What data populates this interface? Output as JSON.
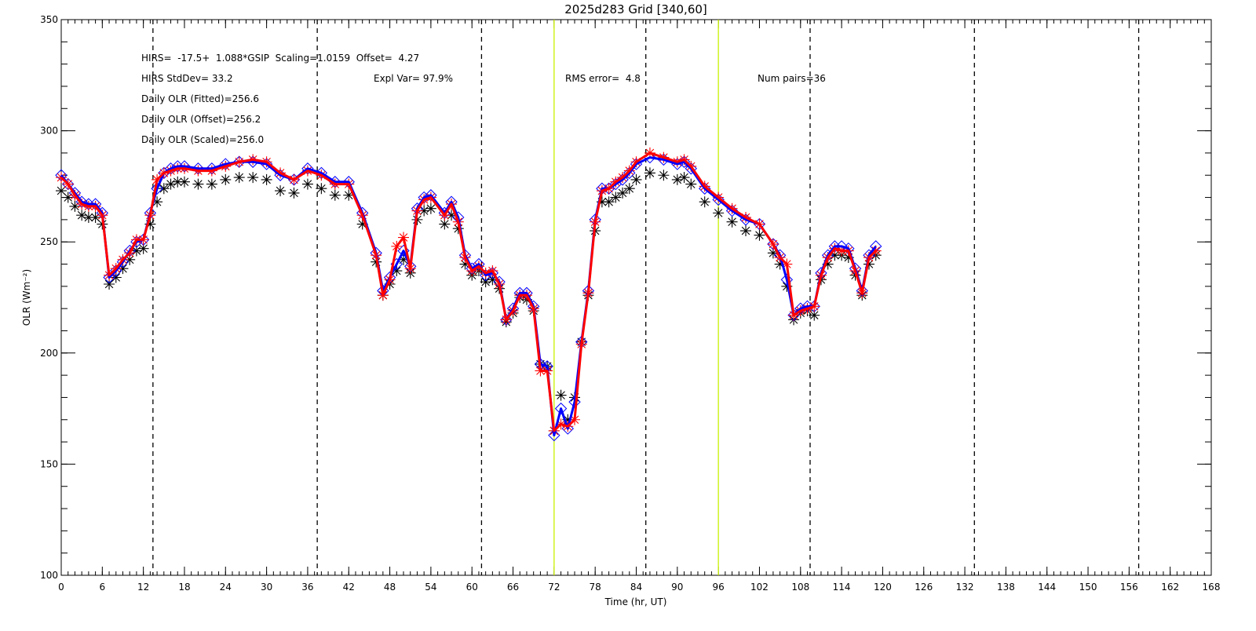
{
  "chart_data": {
    "type": "scatter",
    "title": "2025d283 Grid [340,60]",
    "x_label": "Time (hr, UT)",
    "y_label": "OLR (Wm⁻²)",
    "xlim": [
      0,
      168
    ],
    "xticks": [
      0,
      6,
      12,
      18,
      24,
      30,
      36,
      42,
      48,
      54,
      60,
      66,
      72,
      78,
      84,
      90,
      96,
      102,
      108,
      114,
      120,
      126,
      132,
      138,
      144,
      150,
      156,
      162,
      168
    ],
    "xminor_step": 1,
    "ylim": [
      100,
      350
    ],
    "yticks": [
      100,
      150,
      200,
      250,
      300,
      350
    ],
    "yminor_step": 10,
    "annotations": [
      "HIRS=  -17.5+  1.088*GSIP  Scaling=1.0159  Offset=  4.27",
      "HIRS StdDev= 33.2",
      "Expl Var= 97.9%",
      "RMS error=  4.8",
      "Num pairs=36",
      "Daily OLR (Fitted)=256.6",
      "Daily OLR (Offset)=256.2",
      "Daily OLR (Scaled)=256.0"
    ],
    "vlines": [
      {
        "x": 13.4,
        "color": "#000000",
        "dash": true
      },
      {
        "x": 37.4,
        "color": "#000000",
        "dash": true
      },
      {
        "x": 61.4,
        "color": "#000000",
        "dash": true
      },
      {
        "x": 85.4,
        "color": "#000000",
        "dash": true
      },
      {
        "x": 109.4,
        "color": "#000000",
        "dash": true
      },
      {
        "x": 133.4,
        "color": "#000000",
        "dash": true
      },
      {
        "x": 157.4,
        "color": "#000000",
        "dash": true
      },
      {
        "x": 72,
        "color": "#c8f000",
        "dash": false
      },
      {
        "x": 96,
        "color": "#c8f000",
        "dash": false
      }
    ],
    "x": [
      0,
      1,
      2,
      3,
      4,
      5,
      6,
      7,
      8,
      9,
      10,
      11,
      12,
      13,
      14,
      15,
      16,
      17,
      18,
      20,
      22,
      24,
      26,
      28,
      30,
      32,
      34,
      36,
      38,
      40,
      42,
      44,
      46,
      47,
      48,
      49,
      50,
      51,
      52,
      53,
      54,
      56,
      57,
      58,
      59,
      60,
      61,
      62,
      63,
      64,
      65,
      66,
      67,
      68,
      69,
      70,
      71,
      72,
      73,
      74,
      75,
      76,
      77,
      78,
      79,
      80,
      81,
      82,
      83,
      84,
      86,
      88,
      90,
      91,
      92,
      94,
      96,
      98,
      100,
      102,
      104,
      105,
      106,
      107,
      108,
      109,
      110,
      111,
      112,
      113,
      114,
      115,
      116,
      117,
      118,
      119
    ],
    "series": [
      {
        "color": "#000000",
        "marker": "asterisk",
        "line": false,
        "values": [
          273,
          270,
          266,
          262,
          261,
          261,
          258,
          231,
          234,
          238,
          242,
          246,
          247,
          258,
          268,
          274,
          276,
          277,
          277,
          276,
          276,
          278,
          279,
          279,
          278,
          273,
          272,
          276,
          274,
          271,
          271,
          258,
          241,
          226,
          231,
          237,
          242,
          236,
          260,
          264,
          265,
          258,
          262,
          256,
          240,
          235,
          237,
          232,
          233,
          229,
          214,
          218,
          225,
          224,
          219,
          195,
          194,
          165,
          181,
          170,
          180,
          205,
          226,
          255,
          268,
          268,
          270,
          272,
          274,
          278,
          281,
          280,
          278,
          279,
          276,
          268,
          263,
          259,
          255,
          253,
          245,
          240,
          230,
          215,
          218,
          219,
          217,
          233,
          240,
          244,
          244,
          243,
          235,
          226,
          240,
          244
        ]
      },
      {
        "color": "#0000ff",
        "marker": "diamond",
        "line": true,
        "values": [
          280,
          276,
          272,
          268,
          267,
          267,
          263,
          234,
          237,
          241,
          246,
          250,
          251,
          263,
          274,
          281,
          283,
          284,
          284,
          283,
          283,
          285,
          286,
          286,
          285,
          280,
          278,
          283,
          281,
          277,
          277,
          263,
          245,
          228,
          234,
          240,
          246,
          239,
          265,
          270,
          271,
          263,
          268,
          261,
          244,
          238,
          240,
          235,
          236,
          232,
          215,
          220,
          227,
          227,
          221,
          195,
          194,
          163,
          175,
          166,
          178,
          205,
          228,
          260,
          274,
          274,
          276,
          278,
          281,
          285,
          288,
          287,
          285,
          286,
          283,
          274,
          269,
          264,
          260,
          258,
          249,
          244,
          233,
          217,
          220,
          221,
          221,
          236,
          244,
          248,
          248,
          247,
          238,
          228,
          244,
          248
        ]
      },
      {
        "color": "#ff0000",
        "marker": "asterisk",
        "line": true,
        "values": [
          279,
          276,
          271,
          267,
          266,
          266,
          262,
          235,
          238,
          242,
          245,
          251,
          251,
          262,
          278,
          281,
          282,
          283,
          283,
          282,
          282,
          284,
          286,
          287,
          286,
          281,
          278,
          282,
          280,
          276,
          276,
          262,
          244,
          226,
          233,
          248,
          252,
          238,
          264,
          269,
          270,
          262,
          267,
          259,
          243,
          237,
          239,
          236,
          237,
          231,
          215,
          219,
          226,
          226,
          220,
          192,
          192,
          165,
          168,
          167,
          170,
          204,
          227,
          259,
          273,
          274,
          277,
          279,
          282,
          286,
          290,
          288,
          286,
          287,
          284,
          275,
          270,
          265,
          261,
          258,
          249,
          243,
          240,
          217,
          219,
          220,
          221,
          235,
          243,
          247,
          246,
          246,
          237,
          227,
          243,
          246
        ]
      }
    ]
  }
}
